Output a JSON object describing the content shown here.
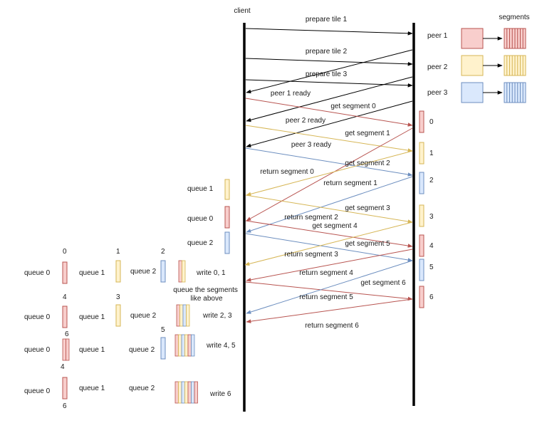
{
  "header": {
    "client": "client",
    "segments": "segments"
  },
  "peers": [
    "peer 1",
    "peer 2",
    "peer 3"
  ],
  "colors": {
    "red_fill": "#f8cecc",
    "red_stroke": "#b85450",
    "yellow_fill": "#fff2cc",
    "yellow_stroke": "#d6b656",
    "blue_fill": "#dae8fc",
    "blue_stroke": "#6c8ebf",
    "arrow_red": "#b85450",
    "arrow_yellow": "#d6b656",
    "arrow_blue": "#6c8ebf",
    "arrow_black": "#000000"
  },
  "messages": [
    "prepare tile 1",
    "prepare tile 2",
    "prepare tile 3",
    "peer 1 ready",
    "get segment 0",
    "peer 2 ready",
    "get segment 1",
    "peer 3 ready",
    "return segment 0",
    "get segment 2",
    "return segment 1",
    "get segment 3",
    "return segment 2",
    "get segment 4",
    "get segment 5",
    "return segment 3",
    "return segment 4",
    "get segment 6",
    "return segment 5",
    "return segment 6"
  ],
  "peer_segment_numbers": [
    "0",
    "1",
    "2",
    "3",
    "4",
    "5",
    "6"
  ],
  "client_queues": [
    "queue 1",
    "queue 0",
    "queue 2"
  ],
  "queue_labels": [
    "queue 0",
    "queue 1",
    "queue 2"
  ],
  "state_numbers": {
    "row1": [
      "0",
      "1",
      "2"
    ],
    "row2": [
      "4",
      "3"
    ],
    "row2_below": "6",
    "row3": [
      "5"
    ],
    "row3_below": "4",
    "row4_below": "6"
  },
  "writes": [
    "write 0, 1",
    "write 2, 3",
    "write 4, 5",
    "write 6"
  ],
  "note": "queue the segments\nlike above"
}
